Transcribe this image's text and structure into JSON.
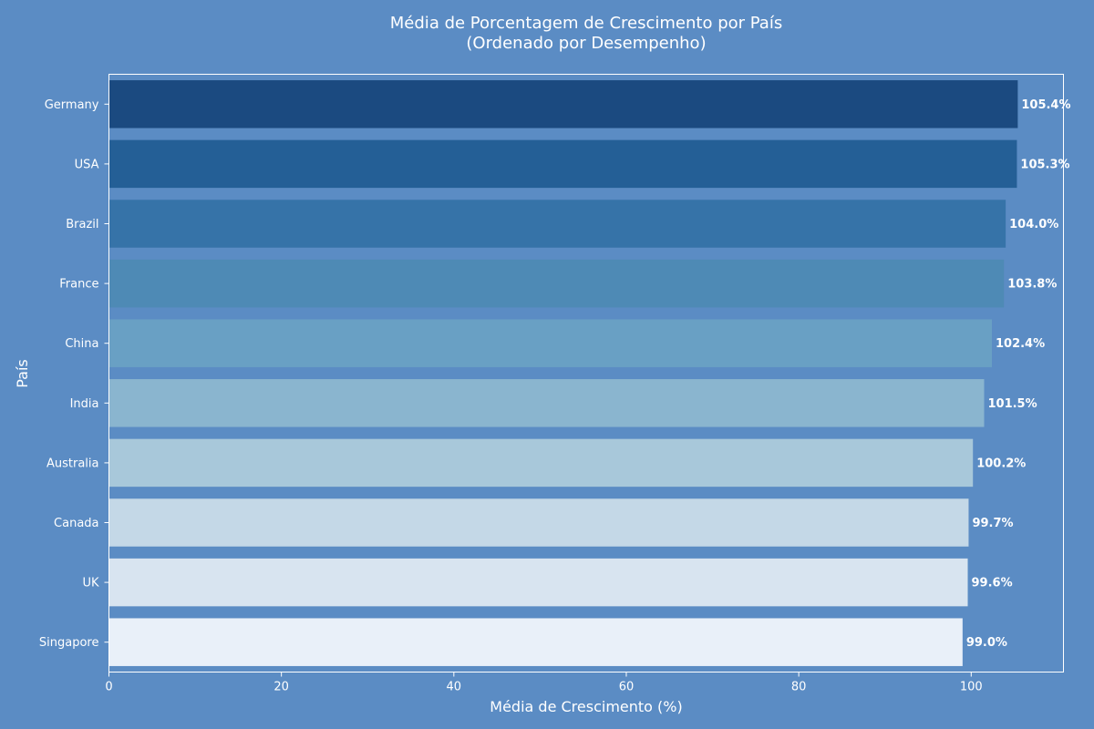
{
  "chart_data": {
    "type": "bar",
    "orientation": "horizontal",
    "title": "Média de Porcentagem de Crescimento por País",
    "subtitle": "(Ordenado por Desempenho)",
    "xlabel": "Média de Crescimento (%)",
    "ylabel": "País",
    "xlim": [
      0,
      110.7
    ],
    "x_ticks": [
      0,
      20,
      40,
      60,
      80,
      100
    ],
    "grid": false,
    "legend": "none",
    "categories": [
      "Germany",
      "USA",
      "Brazil",
      "France",
      "China",
      "India",
      "Australia",
      "Canada",
      "UK",
      "Singapore"
    ],
    "values": [
      105.4,
      105.3,
      104.0,
      103.8,
      102.4,
      101.5,
      100.2,
      99.7,
      99.6,
      99.0
    ],
    "value_labels": [
      "105.4%",
      "105.3%",
      "104.0%",
      "103.8%",
      "102.4%",
      "101.5%",
      "100.2%",
      "99.7%",
      "99.6%",
      "99.0%"
    ],
    "bar_colors": [
      "#1b4a80",
      "#245f96",
      "#3673a8",
      "#4e8ab5",
      "#69a0c4",
      "#8ab5cf",
      "#a8c8da",
      "#c4d8e7",
      "#d8e4f0",
      "#e9f0f9"
    ]
  },
  "colors": {
    "background": "#5b8cc4",
    "text": "#ffffff",
    "axis": "#ffffff"
  }
}
